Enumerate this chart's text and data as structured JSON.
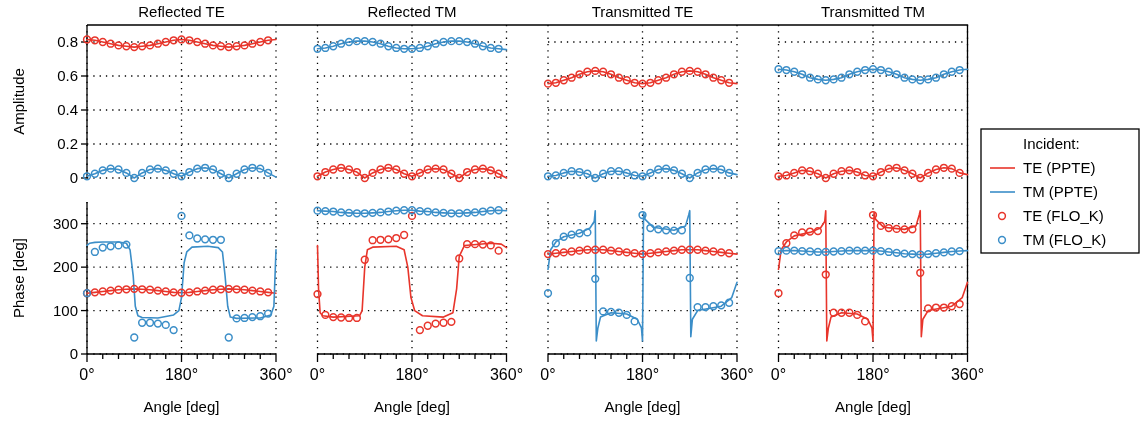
{
  "chart_data": [
    {
      "type": "line",
      "title": "Reflected TE",
      "ylabel": "Amplitude",
      "xlim": [
        0,
        360
      ],
      "ylim": [
        0,
        0.9
      ],
      "xticks": [
        0,
        180,
        360
      ],
      "yticks": [
        0,
        0.2,
        0.4,
        0.6,
        0.8
      ],
      "grid": true,
      "tick_labels": "y",
      "x": [
        0,
        15,
        30,
        45,
        60,
        75,
        90,
        105,
        120,
        135,
        150,
        165,
        180,
        195,
        210,
        225,
        240,
        255,
        270,
        285,
        300,
        315,
        330,
        345
      ],
      "series": [
        {
          "type": "line",
          "color": "#e8352b",
          "x": [
            0,
            15,
            30,
            45,
            60,
            75,
            90,
            105,
            120,
            135,
            150,
            165,
            180,
            195,
            210,
            225,
            240,
            255,
            270,
            285,
            300,
            315,
            330,
            345,
            360
          ],
          "values": [
            0.815,
            0.81,
            0.8,
            0.79,
            0.78,
            0.775,
            0.77,
            0.775,
            0.78,
            0.79,
            0.8,
            0.81,
            0.815,
            0.81,
            0.8,
            0.79,
            0.78,
            0.775,
            0.77,
            0.775,
            0.78,
            0.79,
            0.8,
            0.81,
            0.815
          ]
        },
        {
          "type": "line",
          "color": "#3b8ec8",
          "x": [
            0,
            15,
            30,
            45,
            60,
            75,
            90,
            105,
            120,
            135,
            150,
            165,
            180,
            195,
            210,
            225,
            240,
            255,
            270,
            285,
            300,
            315,
            330,
            345,
            360
          ],
          "values": [
            0.01,
            0.025,
            0.045,
            0.055,
            0.05,
            0.03,
            0.0,
            0.03,
            0.05,
            0.055,
            0.045,
            0.025,
            0.01,
            0.035,
            0.055,
            0.06,
            0.05,
            0.025,
            0.0,
            0.025,
            0.05,
            0.06,
            0.055,
            0.03,
            0.005
          ]
        },
        {
          "type": "scatter",
          "marker": "circle",
          "color": "#e8352b",
          "values": [
            0.815,
            0.81,
            0.8,
            0.79,
            0.78,
            0.775,
            0.77,
            0.775,
            0.78,
            0.79,
            0.8,
            0.81,
            0.815,
            0.81,
            0.8,
            0.79,
            0.78,
            0.775,
            0.77,
            0.775,
            0.78,
            0.79,
            0.8,
            0.81
          ]
        },
        {
          "type": "scatter",
          "marker": "circle",
          "color": "#3b8ec8",
          "values": [
            0.01,
            0.025,
            0.045,
            0.055,
            0.05,
            0.03,
            0.0,
            0.03,
            0.05,
            0.055,
            0.045,
            0.025,
            0.01,
            0.035,
            0.055,
            0.06,
            0.05,
            0.025,
            0.0,
            0.025,
            0.05,
            0.06,
            0.055,
            0.03
          ]
        }
      ]
    },
    {
      "type": "line",
      "title": "Reflected TM",
      "xlim": [
        0,
        360
      ],
      "ylim": [
        0,
        0.9
      ],
      "xticks": [
        0,
        180,
        360
      ],
      "yticks": [
        0,
        0.2,
        0.4,
        0.6,
        0.8
      ],
      "grid": true,
      "tick_labels": false,
      "x": [
        0,
        15,
        30,
        45,
        60,
        75,
        90,
        105,
        120,
        135,
        150,
        165,
        180,
        195,
        210,
        225,
        240,
        255,
        270,
        285,
        300,
        315,
        330,
        345
      ],
      "series": [
        {
          "type": "line",
          "color": "#e8352b",
          "x": [
            0,
            15,
            30,
            45,
            60,
            75,
            90,
            105,
            120,
            135,
            150,
            165,
            180,
            195,
            210,
            225,
            240,
            255,
            270,
            285,
            300,
            315,
            330,
            345,
            360
          ],
          "values": [
            0.01,
            0.035,
            0.05,
            0.06,
            0.05,
            0.035,
            0.0,
            0.03,
            0.05,
            0.06,
            0.05,
            0.025,
            0.01,
            0.03,
            0.05,
            0.055,
            0.05,
            0.025,
            0.0,
            0.035,
            0.05,
            0.055,
            0.045,
            0.025,
            0.0
          ]
        },
        {
          "type": "line",
          "color": "#3b8ec8",
          "x": [
            0,
            15,
            30,
            45,
            60,
            75,
            90,
            105,
            120,
            135,
            150,
            165,
            180,
            195,
            210,
            225,
            240,
            255,
            270,
            285,
            300,
            315,
            330,
            345,
            360
          ],
          "values": [
            0.76,
            0.765,
            0.775,
            0.79,
            0.8,
            0.805,
            0.805,
            0.8,
            0.79,
            0.775,
            0.765,
            0.76,
            0.76,
            0.765,
            0.775,
            0.79,
            0.8,
            0.805,
            0.805,
            0.8,
            0.79,
            0.775,
            0.765,
            0.76,
            0.755
          ]
        },
        {
          "type": "scatter",
          "marker": "circle",
          "color": "#e8352b",
          "values": [
            0.01,
            0.035,
            0.05,
            0.06,
            0.05,
            0.035,
            0.0,
            0.03,
            0.05,
            0.06,
            0.05,
            0.025,
            0.01,
            0.03,
            0.05,
            0.055,
            0.05,
            0.025,
            0.0,
            0.035,
            0.05,
            0.055,
            0.045,
            0.025
          ]
        },
        {
          "type": "scatter",
          "marker": "circle",
          "color": "#3b8ec8",
          "values": [
            0.76,
            0.765,
            0.775,
            0.79,
            0.8,
            0.805,
            0.805,
            0.8,
            0.79,
            0.775,
            0.765,
            0.76,
            0.76,
            0.765,
            0.775,
            0.79,
            0.8,
            0.805,
            0.805,
            0.8,
            0.79,
            0.775,
            0.765,
            0.76
          ]
        }
      ]
    },
    {
      "type": "line",
      "title": "Transmitted TE",
      "xlim": [
        0,
        360
      ],
      "ylim": [
        0,
        0.9
      ],
      "xticks": [
        0,
        180,
        360
      ],
      "yticks": [
        0,
        0.2,
        0.4,
        0.6,
        0.8
      ],
      "grid": true,
      "tick_labels": false,
      "x": [
        0,
        15,
        30,
        45,
        60,
        75,
        90,
        105,
        120,
        135,
        150,
        165,
        180,
        195,
        210,
        225,
        240,
        255,
        270,
        285,
        300,
        315,
        330,
        345
      ],
      "series": [
        {
          "type": "line",
          "color": "#e8352b",
          "x": [
            0,
            15,
            30,
            45,
            60,
            75,
            90,
            105,
            120,
            135,
            150,
            165,
            180,
            195,
            210,
            225,
            240,
            255,
            270,
            285,
            300,
            315,
            330,
            345,
            360
          ],
          "values": [
            0.555,
            0.56,
            0.575,
            0.59,
            0.61,
            0.625,
            0.63,
            0.625,
            0.61,
            0.59,
            0.575,
            0.56,
            0.555,
            0.56,
            0.575,
            0.59,
            0.61,
            0.625,
            0.63,
            0.625,
            0.61,
            0.59,
            0.575,
            0.56,
            0.555
          ]
        },
        {
          "type": "line",
          "color": "#3b8ec8",
          "x": [
            0,
            15,
            30,
            45,
            60,
            75,
            90,
            105,
            120,
            135,
            150,
            165,
            180,
            195,
            210,
            225,
            240,
            255,
            270,
            285,
            300,
            315,
            330,
            345,
            360
          ],
          "values": [
            0.01,
            0.015,
            0.03,
            0.04,
            0.035,
            0.025,
            0.0,
            0.025,
            0.04,
            0.04,
            0.03,
            0.015,
            0.01,
            0.03,
            0.05,
            0.055,
            0.045,
            0.025,
            0.0,
            0.03,
            0.05,
            0.055,
            0.05,
            0.03,
            0.02
          ]
        },
        {
          "type": "scatter",
          "marker": "circle",
          "color": "#e8352b",
          "values": [
            0.555,
            0.56,
            0.575,
            0.59,
            0.61,
            0.625,
            0.63,
            0.625,
            0.61,
            0.59,
            0.575,
            0.56,
            0.555,
            0.56,
            0.575,
            0.59,
            0.61,
            0.625,
            0.63,
            0.625,
            0.61,
            0.59,
            0.575,
            0.56
          ]
        },
        {
          "type": "scatter",
          "marker": "circle",
          "color": "#3b8ec8",
          "values": [
            0.01,
            0.015,
            0.03,
            0.04,
            0.035,
            0.025,
            0.0,
            0.025,
            0.04,
            0.04,
            0.03,
            0.015,
            0.01,
            0.03,
            0.05,
            0.055,
            0.045,
            0.025,
            0.0,
            0.03,
            0.05,
            0.055,
            0.05,
            0.03
          ]
        }
      ]
    },
    {
      "type": "line",
      "title": "Transmitted TM",
      "legend": "right",
      "legend_title": "Incident:",
      "xlim": [
        0,
        360
      ],
      "ylim": [
        0,
        0.9
      ],
      "xticks": [
        0,
        180,
        360
      ],
      "yticks": [
        0,
        0.2,
        0.4,
        0.6,
        0.8
      ],
      "grid": true,
      "tick_labels": false,
      "x": [
        0,
        15,
        30,
        45,
        60,
        75,
        90,
        105,
        120,
        135,
        150,
        165,
        180,
        195,
        210,
        225,
        240,
        255,
        270,
        285,
        300,
        315,
        330,
        345
      ],
      "series": [
        {
          "type": "line",
          "name": "TE (PPTE)",
          "color": "#e8352b",
          "x": [
            0,
            15,
            30,
            45,
            60,
            75,
            90,
            105,
            120,
            135,
            150,
            165,
            180,
            195,
            210,
            225,
            240,
            255,
            270,
            285,
            300,
            315,
            330,
            345,
            360
          ],
          "values": [
            0.01,
            0.015,
            0.03,
            0.045,
            0.04,
            0.025,
            0.0,
            0.025,
            0.04,
            0.045,
            0.035,
            0.015,
            0.01,
            0.035,
            0.055,
            0.06,
            0.045,
            0.025,
            0.0,
            0.03,
            0.05,
            0.06,
            0.055,
            0.03,
            0.02
          ]
        },
        {
          "type": "line",
          "name": "TM (PPTE)",
          "color": "#3b8ec8",
          "x": [
            0,
            15,
            30,
            45,
            60,
            75,
            90,
            105,
            120,
            135,
            150,
            165,
            180,
            195,
            210,
            225,
            240,
            255,
            270,
            285,
            300,
            315,
            330,
            345,
            360
          ],
          "values": [
            0.64,
            0.635,
            0.625,
            0.61,
            0.59,
            0.58,
            0.575,
            0.58,
            0.59,
            0.61,
            0.625,
            0.635,
            0.64,
            0.635,
            0.625,
            0.61,
            0.59,
            0.58,
            0.575,
            0.58,
            0.59,
            0.61,
            0.625,
            0.635,
            0.64
          ]
        },
        {
          "type": "scatter",
          "name": "TE (FLO_K)",
          "marker": "circle",
          "color": "#e8352b",
          "values": [
            0.01,
            0.015,
            0.03,
            0.045,
            0.04,
            0.025,
            0.0,
            0.025,
            0.04,
            0.045,
            0.035,
            0.015,
            0.01,
            0.035,
            0.055,
            0.06,
            0.045,
            0.025,
            0.0,
            0.03,
            0.05,
            0.06,
            0.055,
            0.03
          ]
        },
        {
          "type": "scatter",
          "name": "TM (FLO_K)",
          "marker": "circle",
          "color": "#3b8ec8",
          "values": [
            0.64,
            0.635,
            0.625,
            0.61,
            0.59,
            0.58,
            0.575,
            0.58,
            0.59,
            0.61,
            0.625,
            0.635,
            0.64,
            0.635,
            0.625,
            0.61,
            0.59,
            0.58,
            0.575,
            0.58,
            0.59,
            0.61,
            0.625,
            0.635
          ]
        }
      ]
    },
    {
      "type": "line",
      "ylabel": "Phase [deg]",
      "xlabel": "Angle [deg]",
      "xlim": [
        0,
        360
      ],
      "ylim": [
        0,
        350
      ],
      "xticks": [
        {
          "value": 0,
          "label": "0°"
        },
        {
          "value": 30,
          "label": null
        },
        {
          "value": 60,
          "label": null
        },
        {
          "value": 90,
          "label": null
        },
        {
          "value": 120,
          "label": null
        },
        {
          "value": 150,
          "label": null
        },
        {
          "value": 180,
          "label": "180°"
        },
        {
          "value": 210,
          "label": null
        },
        {
          "value": 240,
          "label": null
        },
        {
          "value": 270,
          "label": null
        },
        {
          "value": 300,
          "label": null
        },
        {
          "value": 330,
          "label": null
        },
        {
          "value": 360,
          "label": "360°"
        }
      ],
      "yticks": [
        0,
        100,
        200,
        300
      ],
      "grid": true,
      "x": [
        0,
        15,
        30,
        45,
        60,
        75,
        90,
        105,
        120,
        135,
        150,
        165,
        180,
        195,
        210,
        225,
        240,
        255,
        270,
        285,
        300,
        315,
        330,
        345
      ],
      "series": [
        {
          "type": "line",
          "color": "#e8352b",
          "x": [
            0,
            15,
            30,
            45,
            60,
            75,
            90,
            105,
            120,
            135,
            150,
            165,
            180,
            195,
            210,
            225,
            240,
            255,
            270,
            285,
            300,
            315,
            330,
            345,
            360
          ],
          "values": [
            140,
            142,
            144,
            146,
            148,
            149,
            150,
            149,
            148,
            146,
            144,
            142,
            141,
            142,
            144,
            146,
            148,
            149,
            150,
            149,
            148,
            146,
            144,
            142,
            140
          ]
        },
        {
          "type": "line",
          "color": "#3b8ec8",
          "x": [
            0,
            5,
            15,
            30,
            60,
            75,
            82,
            88,
            92,
            97,
            105,
            135,
            165,
            175,
            180,
            185,
            190,
            200,
            230,
            250,
            258,
            263,
            268,
            273,
            285,
            330,
            350,
            356,
            360
          ],
          "values": [
            250,
            255,
            257,
            258,
            258,
            255,
            240,
            180,
            110,
            88,
            84,
            83,
            90,
            100,
            130,
            210,
            235,
            246,
            248,
            245,
            235,
            180,
            110,
            85,
            82,
            83,
            90,
            110,
            240
          ]
        },
        {
          "type": "scatter",
          "marker": "circle",
          "color": "#e8352b",
          "values": [
            140,
            142,
            144,
            146,
            148,
            149,
            150,
            149,
            148,
            146,
            144,
            142,
            141,
            142,
            144,
            146,
            148,
            149,
            150,
            149,
            148,
            146,
            144,
            142
          ]
        },
        {
          "type": "scatter",
          "marker": "circle",
          "color": "#3b8ec8",
          "values": [
            140,
            235,
            245,
            248,
            250,
            252,
            38,
            72,
            72,
            70,
            67,
            55,
            318,
            273,
            266,
            264,
            263,
            263,
            38,
            82,
            83,
            85,
            87,
            93
          ]
        }
      ]
    },
    {
      "type": "line",
      "xlabel": "Angle [deg]",
      "xlim": [
        0,
        360
      ],
      "ylim": [
        0,
        350
      ],
      "xticks": [
        {
          "value": 0,
          "label": "0°"
        },
        {
          "value": 30,
          "label": null
        },
        {
          "value": 60,
          "label": null
        },
        {
          "value": 90,
          "label": null
        },
        {
          "value": 120,
          "label": null
        },
        {
          "value": 150,
          "label": null
        },
        {
          "value": 180,
          "label": "180°"
        },
        {
          "value": 210,
          "label": null
        },
        {
          "value": 240,
          "label": null
        },
        {
          "value": 270,
          "label": null
        },
        {
          "value": 300,
          "label": null
        },
        {
          "value": 330,
          "label": null
        },
        {
          "value": 360,
          "label": "360°"
        }
      ],
      "yticks": [
        0,
        100,
        200,
        300
      ],
      "grid": true,
      "tick_labels": "x",
      "x": [
        0,
        15,
        30,
        45,
        60,
        75,
        90,
        105,
        120,
        135,
        150,
        165,
        180,
        195,
        210,
        225,
        240,
        255,
        270,
        285,
        300,
        315,
        330,
        345
      ],
      "series": [
        {
          "type": "line",
          "color": "#e8352b",
          "x": [
            0,
            2,
            5,
            10,
            30,
            80,
            85,
            90,
            95,
            105,
            150,
            165,
            172,
            178,
            185,
            200,
            240,
            258,
            265,
            270,
            280,
            330,
            350,
            360
          ],
          "values": [
            250,
            150,
            95,
            88,
            85,
            88,
            100,
            200,
            240,
            246,
            248,
            240,
            200,
            130,
            100,
            88,
            85,
            95,
            150,
            225,
            250,
            255,
            253,
            245
          ]
        },
        {
          "type": "line",
          "color": "#3b8ec8",
          "x": [
            0,
            15,
            30,
            45,
            60,
            75,
            90,
            105,
            120,
            135,
            150,
            165,
            180,
            195,
            210,
            225,
            240,
            255,
            270,
            285,
            300,
            315,
            330,
            345,
            360
          ],
          "values": [
            330,
            329,
            328,
            326,
            325,
            324,
            324,
            325,
            326,
            328,
            330,
            331,
            331,
            329,
            328,
            326,
            325,
            324,
            324,
            325,
            326,
            328,
            330,
            331,
            330
          ]
        },
        {
          "type": "scatter",
          "marker": "circle",
          "color": "#e8352b",
          "values": [
            138,
            90,
            85,
            84,
            83,
            83,
            217,
            262,
            263,
            264,
            267,
            274,
            318,
            55,
            65,
            70,
            72,
            74,
            220,
            253,
            253,
            252,
            250,
            238
          ]
        },
        {
          "type": "scatter",
          "marker": "circle",
          "color": "#3b8ec8",
          "values": [
            330,
            329,
            328,
            326,
            325,
            324,
            324,
            325,
            326,
            328,
            330,
            331,
            331,
            329,
            328,
            326,
            325,
            324,
            324,
            325,
            326,
            328,
            330,
            331
          ]
        }
      ]
    },
    {
      "type": "line",
      "xlabel": "Angle [deg]",
      "xlim": [
        0,
        360
      ],
      "ylim": [
        0,
        350
      ],
      "xticks": [
        {
          "value": 0,
          "label": "0°"
        },
        {
          "value": 30,
          "label": null
        },
        {
          "value": 60,
          "label": null
        },
        {
          "value": 90,
          "label": null
        },
        {
          "value": 120,
          "label": null
        },
        {
          "value": 150,
          "label": null
        },
        {
          "value": 180,
          "label": "180°"
        },
        {
          "value": 210,
          "label": null
        },
        {
          "value": 240,
          "label": null
        },
        {
          "value": 270,
          "label": null
        },
        {
          "value": 300,
          "label": null
        },
        {
          "value": 330,
          "label": null
        },
        {
          "value": 360,
          "label": "360°"
        }
      ],
      "yticks": [
        0,
        100,
        200,
        300
      ],
      "grid": true,
      "tick_labels": "x",
      "x": [
        0,
        15,
        30,
        45,
        60,
        75,
        90,
        105,
        120,
        135,
        150,
        165,
        180,
        195,
        210,
        225,
        240,
        255,
        270,
        285,
        300,
        315,
        330,
        345
      ],
      "series": [
        {
          "type": "line",
          "color": "#e8352b",
          "x": [
            0,
            15,
            30,
            45,
            60,
            75,
            90,
            105,
            120,
            135,
            150,
            165,
            180,
            195,
            210,
            225,
            240,
            255,
            270,
            285,
            300,
            315,
            330,
            345,
            360
          ],
          "values": [
            230,
            232,
            234,
            236,
            238,
            240,
            240,
            240,
            238,
            236,
            234,
            232,
            230,
            232,
            234,
            236,
            238,
            240,
            240,
            240,
            238,
            236,
            234,
            232,
            230
          ]
        },
        {
          "type": "line",
          "color": "#3b8ec8",
          "x": [
            0,
            5,
            15,
            30,
            60,
            80,
            88,
            90,
            92,
            95,
            100,
            120,
            150,
            170,
            178,
            180,
            182,
            185,
            200,
            240,
            262,
            268,
            270,
            272,
            275,
            285,
            330,
            350,
            360
          ],
          "values": [
            195,
            240,
            258,
            270,
            278,
            290,
            305,
            330,
            30,
            60,
            85,
            95,
            92,
            80,
            60,
            30,
            325,
            310,
            292,
            285,
            295,
            320,
            330,
            40,
            80,
            100,
            110,
            130,
            165
          ]
        },
        {
          "type": "scatter",
          "marker": "circle",
          "color": "#e8352b",
          "values": [
            230,
            232,
            234,
            236,
            238,
            240,
            240,
            240,
            238,
            236,
            234,
            232,
            230,
            232,
            234,
            236,
            238,
            240,
            240,
            240,
            238,
            236,
            234,
            232
          ]
        },
        {
          "type": "scatter",
          "marker": "circle",
          "color": "#3b8ec8",
          "values": [
            140,
            255,
            270,
            275,
            278,
            280,
            173,
            98,
            97,
            95,
            90,
            75,
            320,
            290,
            287,
            285,
            284,
            285,
            175,
            108,
            108,
            110,
            112,
            118
          ]
        }
      ]
    },
    {
      "type": "line",
      "xlabel": "Angle [deg]",
      "xlim": [
        0,
        360
      ],
      "ylim": [
        0,
        350
      ],
      "xticks": [
        {
          "value": 0,
          "label": "0°"
        },
        {
          "value": 30,
          "label": null
        },
        {
          "value": 60,
          "label": null
        },
        {
          "value": 90,
          "label": null
        },
        {
          "value": 120,
          "label": null
        },
        {
          "value": 150,
          "label": null
        },
        {
          "value": 180,
          "label": "180°"
        },
        {
          "value": 210,
          "label": null
        },
        {
          "value": 240,
          "label": null
        },
        {
          "value": 270,
          "label": null
        },
        {
          "value": 300,
          "label": null
        },
        {
          "value": 330,
          "label": null
        },
        {
          "value": 360,
          "label": "360°"
        }
      ],
      "yticks": [
        0,
        100,
        200,
        300
      ],
      "grid": true,
      "tick_labels": "x",
      "x": [
        0,
        15,
        30,
        45,
        60,
        75,
        90,
        105,
        120,
        135,
        150,
        165,
        180,
        195,
        210,
        225,
        240,
        255,
        270,
        285,
        300,
        315,
        330,
        345
      ],
      "series": [
        {
          "type": "line",
          "color": "#e8352b",
          "x": [
            0,
            5,
            15,
            30,
            60,
            80,
            88,
            90,
            92,
            95,
            100,
            120,
            150,
            170,
            178,
            180,
            182,
            185,
            200,
            240,
            262,
            268,
            270,
            272,
            275,
            285,
            330,
            350,
            360
          ],
          "values": [
            195,
            240,
            258,
            272,
            280,
            290,
            305,
            330,
            30,
            60,
            85,
            95,
            92,
            80,
            60,
            30,
            325,
            310,
            292,
            287,
            295,
            320,
            330,
            40,
            80,
            100,
            110,
            130,
            165
          ]
        },
        {
          "type": "line",
          "color": "#3b8ec8",
          "x": [
            0,
            15,
            30,
            45,
            60,
            75,
            90,
            105,
            120,
            135,
            150,
            165,
            180,
            195,
            210,
            225,
            240,
            255,
            270,
            285,
            300,
            315,
            330,
            345,
            360
          ],
          "values": [
            237,
            238,
            238,
            237,
            236,
            235,
            235,
            236,
            237,
            238,
            238,
            238,
            238,
            237,
            235,
            233,
            231,
            230,
            229,
            230,
            232,
            234,
            236,
            237,
            238
          ]
        },
        {
          "type": "scatter",
          "marker": "circle",
          "color": "#e8352b",
          "values": [
            140,
            255,
            273,
            280,
            282,
            283,
            183,
            95,
            95,
            95,
            90,
            75,
            320,
            295,
            290,
            288,
            287,
            287,
            187,
            105,
            107,
            107,
            110,
            115
          ]
        },
        {
          "type": "scatter",
          "marker": "circle",
          "color": "#3b8ec8",
          "values": [
            237,
            238,
            238,
            237,
            236,
            235,
            235,
            236,
            237,
            238,
            238,
            238,
            238,
            237,
            235,
            233,
            231,
            230,
            229,
            230,
            232,
            234,
            236,
            237
          ]
        }
      ]
    }
  ]
}
